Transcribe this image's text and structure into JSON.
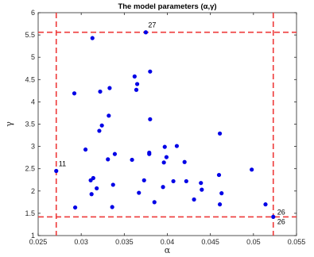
{
  "chart_data": {
    "type": "scatter",
    "title": "The model parameters (α,γ)",
    "xlabel": "α",
    "ylabel": "γ",
    "xlim": [
      0.025,
      0.055
    ],
    "ylim": [
      1,
      6
    ],
    "x_ticks": [
      "0.025",
      "0.03",
      "0.035",
      "0.04",
      "0.045",
      "0.05",
      "0.055"
    ],
    "y_ticks": [
      "1",
      "1.5",
      "2",
      "2.5",
      "3",
      "3.5",
      "4",
      "4.5",
      "5",
      "5.5",
      "6"
    ],
    "grid": false,
    "point_color": "#0000e6",
    "threshold_color": "#ee3a3a",
    "threshold_lines": {
      "vertical": [
        0.0271,
        0.0523
      ],
      "horizontal": [
        1.42,
        5.56
      ]
    },
    "points": [
      {
        "x": 0.0271,
        "y": 2.45,
        "label": "11"
      },
      {
        "x": 0.0292,
        "y": 4.19
      },
      {
        "x": 0.0293,
        "y": 1.63
      },
      {
        "x": 0.0305,
        "y": 2.93
      },
      {
        "x": 0.0311,
        "y": 2.24
      },
      {
        "x": 0.0312,
        "y": 1.93
      },
      {
        "x": 0.0313,
        "y": 5.43
      },
      {
        "x": 0.0314,
        "y": 2.29
      },
      {
        "x": 0.0318,
        "y": 2.06
      },
      {
        "x": 0.0321,
        "y": 3.35
      },
      {
        "x": 0.0322,
        "y": 4.23
      },
      {
        "x": 0.0324,
        "y": 3.47
      },
      {
        "x": 0.0331,
        "y": 2.71
      },
      {
        "x": 0.0332,
        "y": 3.69
      },
      {
        "x": 0.0333,
        "y": 4.31
      },
      {
        "x": 0.0336,
        "y": 1.64
      },
      {
        "x": 0.0337,
        "y": 2.14
      },
      {
        "x": 0.0339,
        "y": 2.83
      },
      {
        "x": 0.0359,
        "y": 2.7
      },
      {
        "x": 0.0362,
        "y": 4.57
      },
      {
        "x": 0.0364,
        "y": 4.27
      },
      {
        "x": 0.0365,
        "y": 4.4
      },
      {
        "x": 0.0367,
        "y": 1.96
      },
      {
        "x": 0.0373,
        "y": 2.24
      },
      {
        "x": 0.0375,
        "y": 5.56,
        "label": "27"
      },
      {
        "x": 0.0379,
        "y": 2.86
      },
      {
        "x": 0.0379,
        "y": 2.83
      },
      {
        "x": 0.038,
        "y": 4.68
      },
      {
        "x": 0.038,
        "y": 3.61
      },
      {
        "x": 0.0385,
        "y": 1.75
      },
      {
        "x": 0.0395,
        "y": 2.09
      },
      {
        "x": 0.0396,
        "y": 2.64
      },
      {
        "x": 0.0397,
        "y": 2.99
      },
      {
        "x": 0.0399,
        "y": 2.76
      },
      {
        "x": 0.0407,
        "y": 2.22
      },
      {
        "x": 0.0411,
        "y": 3.01
      },
      {
        "x": 0.042,
        "y": 2.65
      },
      {
        "x": 0.0422,
        "y": 2.22
      },
      {
        "x": 0.0431,
        "y": 1.81
      },
      {
        "x": 0.0439,
        "y": 2.18
      },
      {
        "x": 0.044,
        "y": 2.03
      },
      {
        "x": 0.046,
        "y": 2.36
      },
      {
        "x": 0.0461,
        "y": 3.29
      },
      {
        "x": 0.0461,
        "y": 1.7
      },
      {
        "x": 0.0463,
        "y": 1.95
      },
      {
        "x": 0.0498,
        "y": 2.48
      },
      {
        "x": 0.0514,
        "y": 1.7
      },
      {
        "x": 0.0523,
        "y": 1.42,
        "label": "26",
        "label2": "26"
      }
    ]
  }
}
